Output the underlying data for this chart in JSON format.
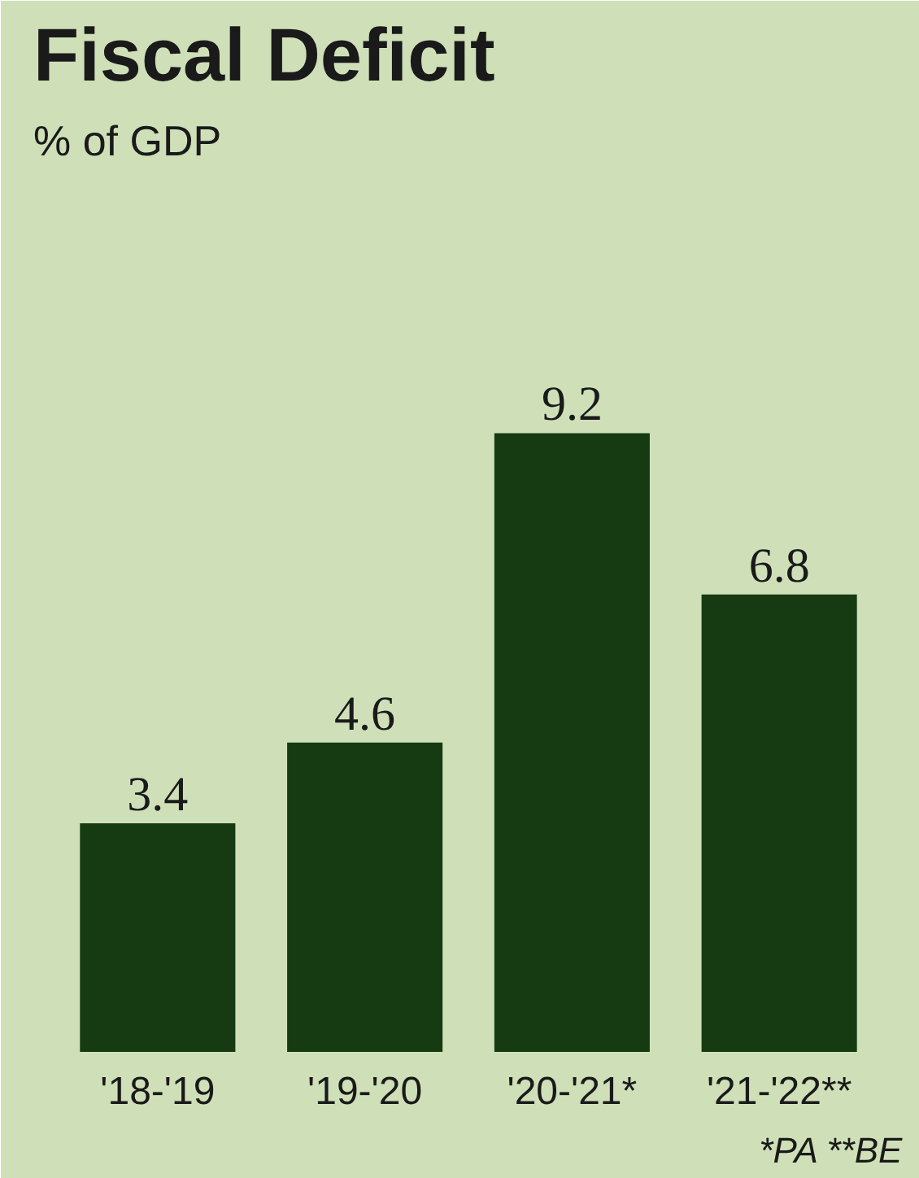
{
  "chart_data": {
    "type": "bar",
    "title": "Fiscal Deficit",
    "subtitle": "% of GDP",
    "categories": [
      "'18-'19",
      "'19-'20",
      "'20-'21*",
      "'21-'22**"
    ],
    "values": [
      3.4,
      4.6,
      9.2,
      6.8
    ],
    "color": "#163a12",
    "data_labels": true,
    "grid": false,
    "annotations": [
      "*PA **BE"
    ]
  }
}
